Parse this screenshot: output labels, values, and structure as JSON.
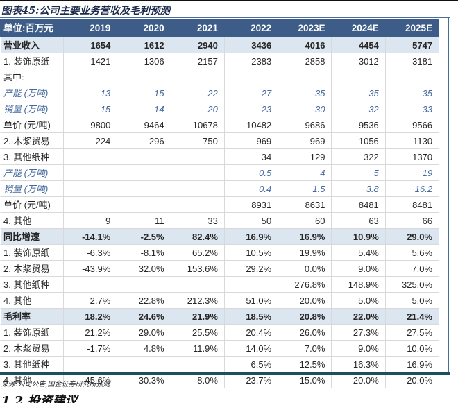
{
  "title": "图表45:公司主要业务营收及毛利预测",
  "source": "来源:公司公告,国金证券研究所预测",
  "next_section_heading": "1.2 投资建议",
  "colors": {
    "header_bg": "#3D5C87",
    "header_text": "#FFFFFF",
    "section_row_bg": "#DCE6F1",
    "forecast_italic_blue": "#45689E",
    "gridline": "#D9D9D9",
    "top_rule_blue": "#4A6C9B",
    "bottom_rule_teal": "#1D505F"
  },
  "table": {
    "columns": [
      "单位:百万元",
      "2019",
      "2020",
      "2021",
      "2022",
      "2023E",
      "2024E",
      "2025E"
    ],
    "rows": [
      {
        "label": "营业收入",
        "style": "section",
        "values": [
          "1654",
          "1612",
          "2940",
          "3436",
          "4016",
          "4454",
          "5747"
        ]
      },
      {
        "label": "1. 装饰原纸",
        "style": "normal",
        "values": [
          "1421",
          "1306",
          "2157",
          "2383",
          "2858",
          "3012",
          "3181"
        ]
      },
      {
        "label": "其中:",
        "style": "normal",
        "values": [
          "",
          "",
          "",
          "",
          "",
          "",
          ""
        ]
      },
      {
        "label": "产能 (万吨)",
        "style": "italic",
        "values": [
          "13",
          "15",
          "22",
          "27",
          "35",
          "35",
          "35"
        ]
      },
      {
        "label": "销量 (万吨)",
        "style": "italic",
        "values": [
          "15",
          "14",
          "20",
          "23",
          "30",
          "32",
          "33"
        ]
      },
      {
        "label": "单价 (元/吨)",
        "style": "normal",
        "values": [
          "9800",
          "9464",
          "10678",
          "10482",
          "9686",
          "9536",
          "9566"
        ]
      },
      {
        "label": "2. 木浆贸易",
        "style": "normal",
        "values": [
          "224",
          "296",
          "750",
          "969",
          "969",
          "1056",
          "1130"
        ]
      },
      {
        "label": "3. 其他纸种",
        "style": "normal",
        "values": [
          "",
          "",
          "",
          "34",
          "129",
          "322",
          "1370"
        ]
      },
      {
        "label": "产能 (万吨)",
        "style": "italic",
        "values": [
          "",
          "",
          "",
          "0.5",
          "4",
          "5",
          "19"
        ]
      },
      {
        "label": "销量 (万吨)",
        "style": "italic",
        "values": [
          "",
          "",
          "",
          "0.4",
          "1.5",
          "3.8",
          "16.2"
        ]
      },
      {
        "label": "单价 (元/吨)",
        "style": "normal",
        "values": [
          "",
          "",
          "",
          "8931",
          "8631",
          "8481",
          "8481"
        ]
      },
      {
        "label": "4. 其他",
        "style": "normal",
        "values": [
          "9",
          "11",
          "33",
          "50",
          "60",
          "63",
          "66"
        ]
      },
      {
        "label": "同比增速",
        "style": "section",
        "values": [
          "-14.1%",
          "-2.5%",
          "82.4%",
          "16.9%",
          "16.9%",
          "10.9%",
          "29.0%"
        ]
      },
      {
        "label": "1. 装饰原纸",
        "style": "normal",
        "values": [
          "-6.3%",
          "-8.1%",
          "65.2%",
          "10.5%",
          "19.9%",
          "5.4%",
          "5.6%"
        ]
      },
      {
        "label": "2. 木浆贸易",
        "style": "normal",
        "values": [
          "-43.9%",
          "32.0%",
          "153.6%",
          "29.2%",
          "0.0%",
          "9.0%",
          "7.0%"
        ]
      },
      {
        "label": "3. 其他纸种",
        "style": "normal",
        "values": [
          "",
          "",
          "",
          "",
          "276.8%",
          "148.9%",
          "325.0%"
        ]
      },
      {
        "label": "4. 其他",
        "style": "normal",
        "values": [
          "2.7%",
          "22.8%",
          "212.3%",
          "51.0%",
          "20.0%",
          "5.0%",
          "5.0%"
        ]
      },
      {
        "label": "毛利率",
        "style": "section",
        "values": [
          "18.2%",
          "24.6%",
          "21.9%",
          "18.5%",
          "20.8%",
          "22.0%",
          "21.4%"
        ]
      },
      {
        "label": "1. 装饰原纸",
        "style": "normal",
        "values": [
          "21.2%",
          "29.0%",
          "25.5%",
          "20.4%",
          "26.0%",
          "27.3%",
          "27.5%"
        ]
      },
      {
        "label": "2. 木浆贸易",
        "style": "normal",
        "values": [
          "-1.7%",
          "4.8%",
          "11.9%",
          "14.0%",
          "7.0%",
          "9.0%",
          "10.0%"
        ]
      },
      {
        "label": "3. 其他纸种",
        "style": "normal",
        "values": [
          "",
          "",
          "",
          "6.5%",
          "12.5%",
          "16.3%",
          "16.9%"
        ]
      },
      {
        "label": "4. 其他",
        "style": "normal",
        "values": [
          "45.6%",
          "30.3%",
          "8.0%",
          "23.7%",
          "15.0%",
          "20.0%",
          "20.0%"
        ]
      }
    ]
  }
}
